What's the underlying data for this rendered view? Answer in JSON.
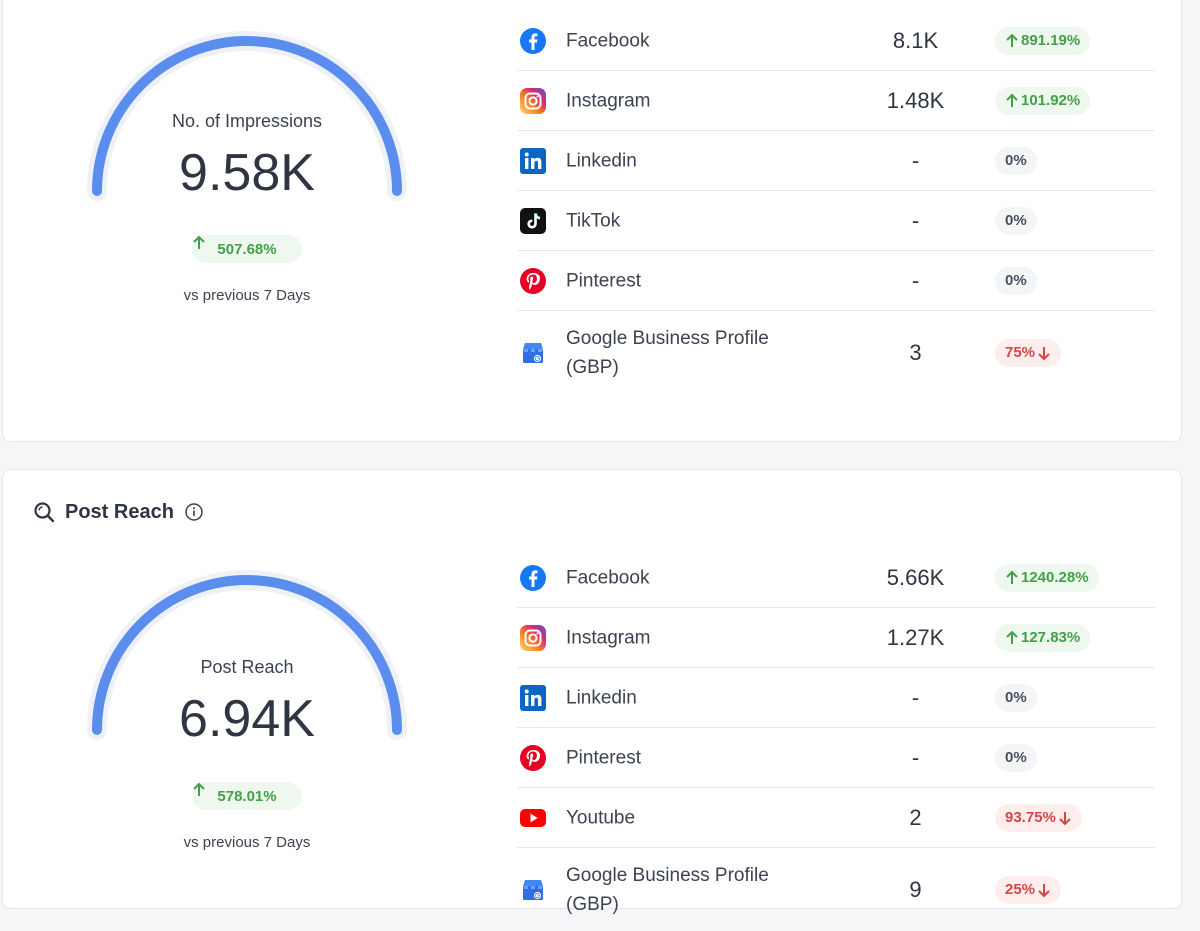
{
  "impressions": {
    "gauge": {
      "label": "No. of Impressions",
      "value": "9.58K",
      "change": "507.68%",
      "note": "vs previous 7 Days"
    },
    "rows": [
      {
        "platform": "Facebook",
        "value": "8.1K",
        "change": "891.19%",
        "trend": "up"
      },
      {
        "platform": "Instagram",
        "value": "1.48K",
        "change": "101.92%",
        "trend": "up"
      },
      {
        "platform": "Linkedin",
        "value": "-",
        "change": "0%",
        "trend": "flat"
      },
      {
        "platform": "TikTok",
        "value": "-",
        "change": "0%",
        "trend": "flat"
      },
      {
        "platform": "Pinterest",
        "value": "-",
        "change": "0%",
        "trend": "flat"
      },
      {
        "platform": "Google Business Profile (GBP)",
        "value": "3",
        "change": "75%",
        "trend": "down"
      }
    ]
  },
  "post_reach": {
    "title": "Post Reach",
    "gauge": {
      "label": "Post Reach",
      "value": "6.94K",
      "change": "578.01%",
      "note": "vs previous 7 Days"
    },
    "rows": [
      {
        "platform": "Facebook",
        "value": "5.66K",
        "change": "1240.28%",
        "trend": "up"
      },
      {
        "platform": "Instagram",
        "value": "1.27K",
        "change": "127.83%",
        "trend": "up"
      },
      {
        "platform": "Linkedin",
        "value": "-",
        "change": "0%",
        "trend": "flat"
      },
      {
        "platform": "Pinterest",
        "value": "-",
        "change": "0%",
        "trend": "flat"
      },
      {
        "platform": "Youtube",
        "value": "2",
        "change": "93.75%",
        "trend": "down"
      },
      {
        "platform": "Google Business Profile (GBP)",
        "value": "9",
        "change": "25%",
        "trend": "down"
      }
    ]
  },
  "icons": {
    "search": "search-icon",
    "info": "info-icon",
    "trend_up": "arrow-up-icon",
    "trend_down": "arrow-down-icon",
    "facebook": "facebook-icon",
    "instagram": "instagram-icon",
    "linkedin": "linkedin-icon",
    "tiktok": "tiktok-icon",
    "pinterest": "pinterest-icon",
    "youtube": "youtube-icon",
    "gbp": "google-business-profile-icon"
  },
  "colors": {
    "gauge_arc": "#5b8def",
    "positive": "#43a047",
    "negative": "#d84545"
  }
}
